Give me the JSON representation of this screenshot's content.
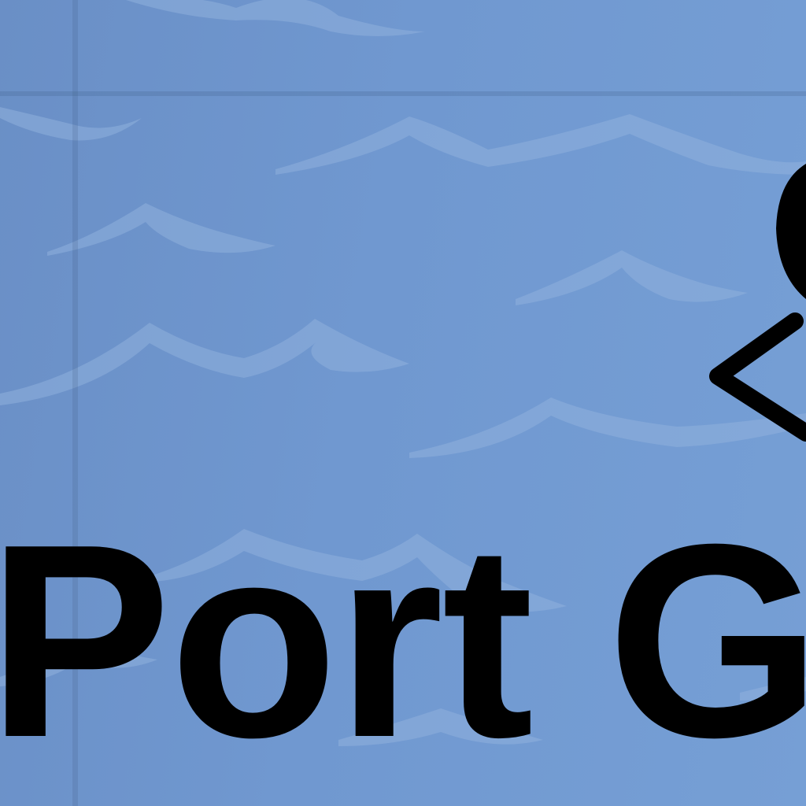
{
  "map": {
    "water_color": "#7098d0",
    "wave_color": "#8aacdb",
    "gridline_color": "#5a7fae"
  },
  "marker": {
    "icon": "anchor-icon",
    "color": "#000000"
  },
  "place_label": {
    "text": "Port G",
    "color": "#000000"
  }
}
